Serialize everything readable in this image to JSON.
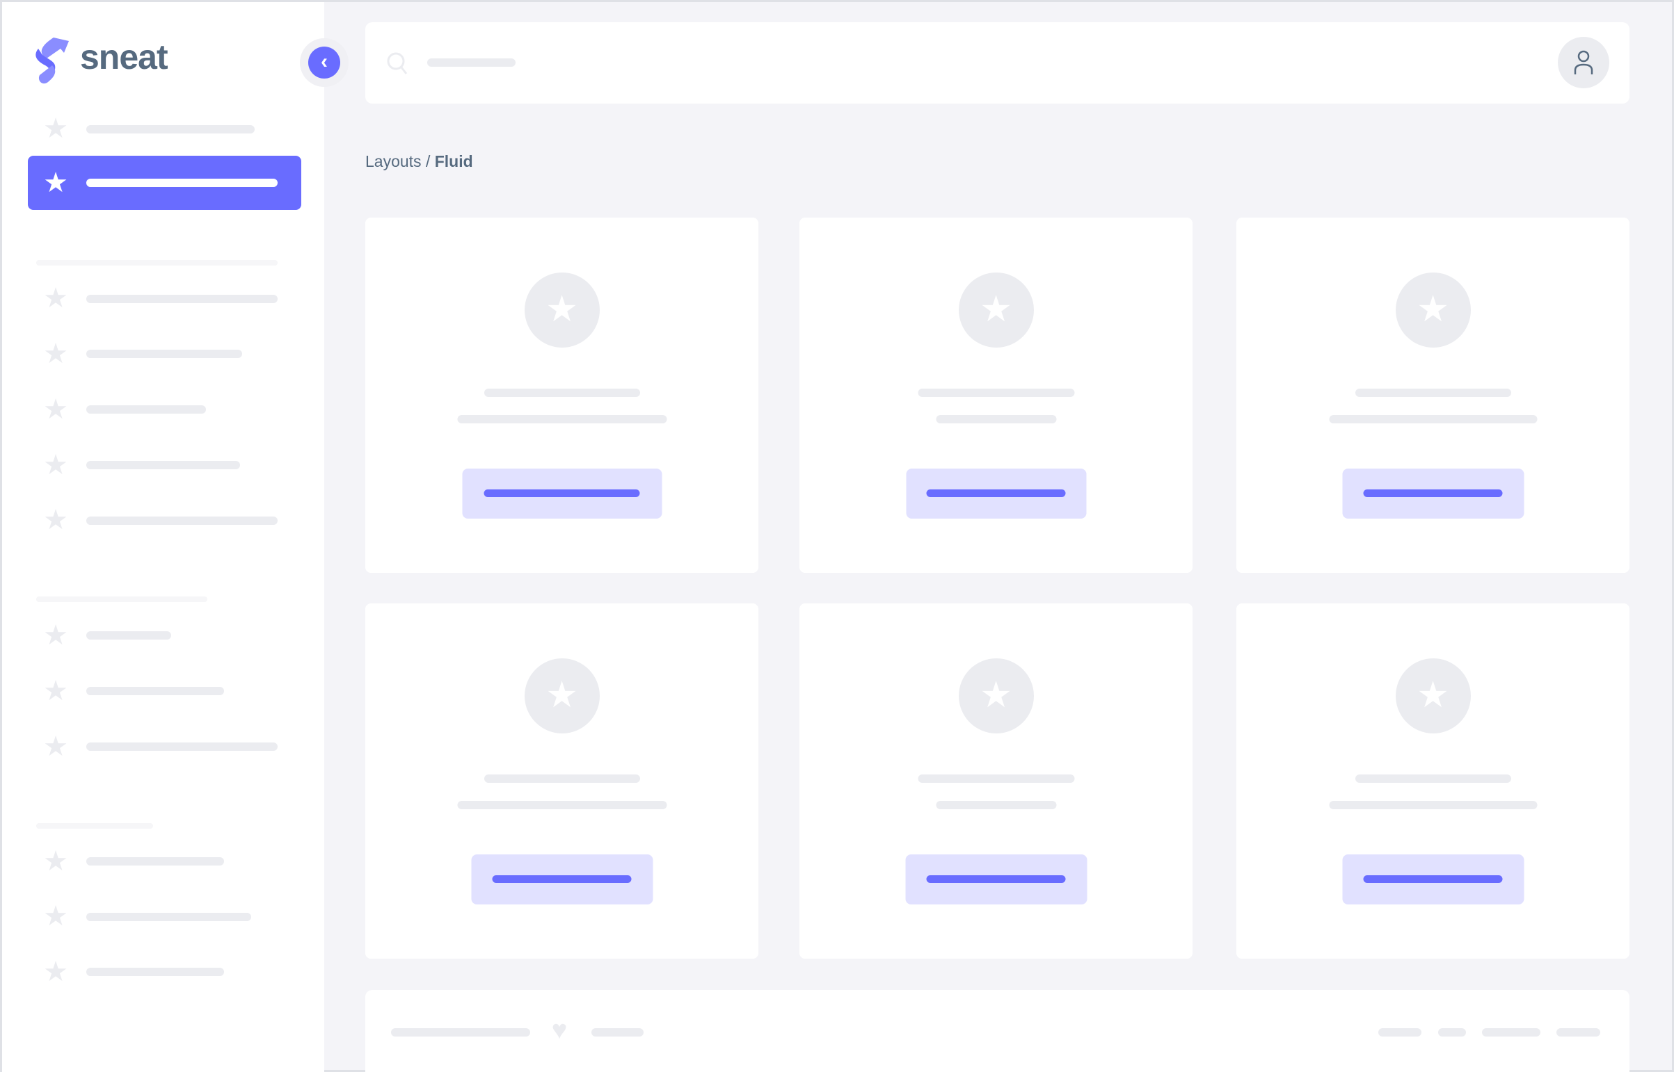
{
  "brand": {
    "name": "sneat",
    "accent_color": "#696cff",
    "text_color": "#566a7f"
  },
  "breadcrumb": {
    "parent": "Layouts",
    "separator": " / ",
    "current": "Fluid"
  },
  "icons": {
    "menu_item": "star-icon",
    "toggle": "chevron-left-icon",
    "search": "search-icon",
    "user": "user-icon",
    "footer": "heart-icon"
  }
}
